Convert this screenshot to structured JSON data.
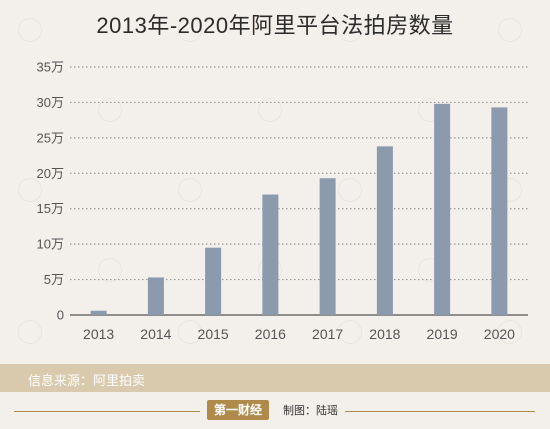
{
  "title": "2013年-2020年阿里平台法拍房数量",
  "source": "信息来源：阿里拍卖",
  "logo_text": "第一财经",
  "credit": "制图：陆瑶",
  "colors": {
    "bar": "#8c9aad",
    "background": "#f3efea",
    "band": "#d9c9ad",
    "accent": "#b08a4a"
  },
  "chart_data": {
    "type": "bar",
    "title": "2013年-2020年阿里平台法拍房数量",
    "categories": [
      "2013",
      "2014",
      "2015",
      "2016",
      "2017",
      "2018",
      "2019",
      "2020"
    ],
    "values": [
      0.6,
      5.3,
      9.5,
      17.0,
      19.3,
      23.8,
      29.8,
      29.3
    ],
    "unit": "万",
    "ylim": [
      0,
      35
    ],
    "yticks": [
      0,
      5,
      10,
      15,
      20,
      25,
      30,
      35
    ],
    "ytick_labels": [
      "0",
      "5万",
      "10万",
      "15万",
      "20万",
      "25万",
      "30万",
      "35万"
    ],
    "grid": "dotted horizontal",
    "legend": "none"
  }
}
